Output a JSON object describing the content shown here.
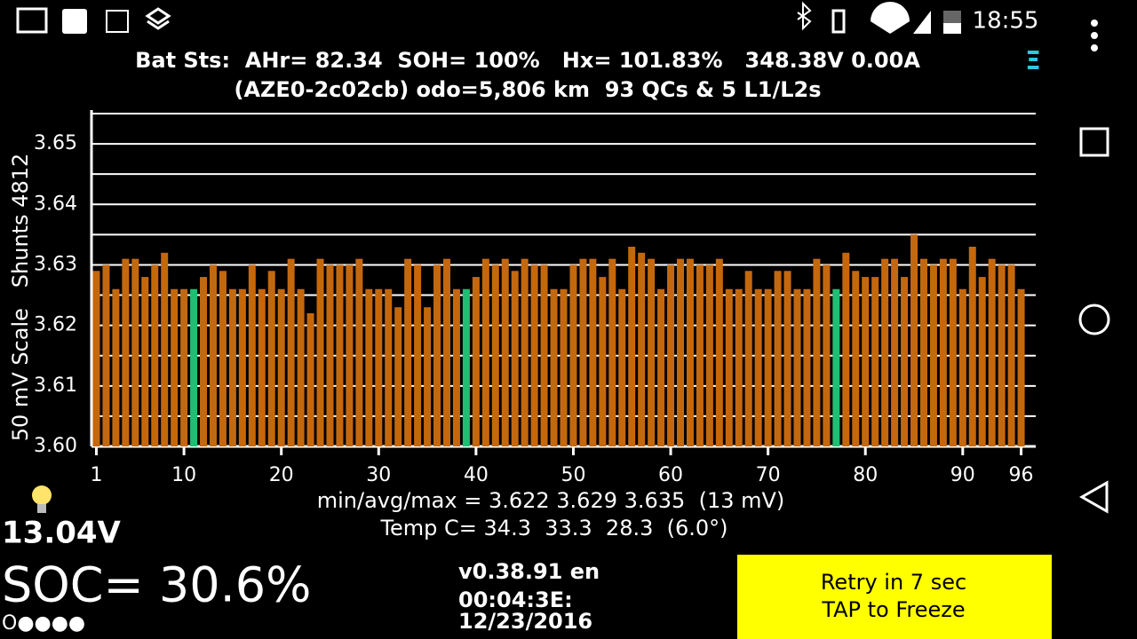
{
  "status_bar": {
    "time": "18:55"
  },
  "header": {
    "line1": "Bat Sts:  AHr= 82.34  SOH= 100%   Hx= 101.83%   348.38V 0.00A",
    "line2": "(AZE0-2c02cb) odo=5,806 km  93 QCs & 5 L1/L2s",
    "menu_icon": "Ξ"
  },
  "chart_data": {
    "type": "bar",
    "ylabel": "50 mV Scale   Shunts 4812",
    "x": [
      1,
      2,
      3,
      4,
      5,
      6,
      7,
      8,
      9,
      10,
      11,
      12,
      13,
      14,
      15,
      16,
      17,
      18,
      19,
      20,
      21,
      22,
      23,
      24,
      25,
      26,
      27,
      28,
      29,
      30,
      31,
      32,
      33,
      34,
      35,
      36,
      37,
      38,
      39,
      40,
      41,
      42,
      43,
      44,
      45,
      46,
      47,
      48,
      49,
      50,
      51,
      52,
      53,
      54,
      55,
      56,
      57,
      58,
      59,
      60,
      61,
      62,
      63,
      64,
      65,
      66,
      67,
      68,
      69,
      70,
      71,
      72,
      73,
      74,
      75,
      76,
      77,
      78,
      79,
      80,
      81,
      82,
      83,
      84,
      85,
      86,
      87,
      88,
      89,
      90,
      91,
      92,
      93,
      94,
      95,
      96
    ],
    "values": [
      3.629,
      3.63,
      3.626,
      3.631,
      3.631,
      3.628,
      3.63,
      3.632,
      3.626,
      3.626,
      3.626,
      3.628,
      3.63,
      3.629,
      3.626,
      3.626,
      3.63,
      3.626,
      3.629,
      3.626,
      3.631,
      3.626,
      3.622,
      3.631,
      3.63,
      3.63,
      3.63,
      3.631,
      3.626,
      3.626,
      3.626,
      3.623,
      3.631,
      3.63,
      3.623,
      3.63,
      3.631,
      3.626,
      3.626,
      3.628,
      3.631,
      3.63,
      3.631,
      3.629,
      3.631,
      3.63,
      3.63,
      3.626,
      3.626,
      3.63,
      3.631,
      3.631,
      3.628,
      3.631,
      3.626,
      3.633,
      3.632,
      3.631,
      3.626,
      3.63,
      3.631,
      3.631,
      3.63,
      3.63,
      3.631,
      3.626,
      3.626,
      3.629,
      3.626,
      3.626,
      3.629,
      3.629,
      3.626,
      3.626,
      3.631,
      3.63,
      3.626,
      3.632,
      3.629,
      3.628,
      3.628,
      3.631,
      3.631,
      3.628,
      3.635,
      3.631,
      3.63,
      3.631,
      3.631,
      3.626,
      3.633,
      3.628,
      3.631,
      3.63,
      3.63,
      3.626
    ],
    "color": "#c4680e",
    "highlight": {
      "color": "#1fbf73",
      "x": [
        11,
        39,
        77
      ]
    },
    "xlim": [
      0.5,
      97.5
    ],
    "xticks": [
      1,
      10,
      20,
      30,
      40,
      50,
      60,
      70,
      80,
      90,
      96
    ],
    "ylim": [
      3.6,
      3.655
    ],
    "yticks": [
      {
        "value": 3.6,
        "label": "3.60"
      },
      3.61,
      3.62,
      3.63,
      3.64,
      3.65
    ],
    "yminorticks": [
      3.605,
      3.615,
      3.625,
      3.635,
      3.645,
      3.655
    ],
    "grid": true
  },
  "stats": {
    "min_avg_max": "min/avg/max = 3.622 3.629 3.635  (13 mV)",
    "temp": "Temp C= 34.3  33.3  28.3  (6.0°)"
  },
  "aux_voltage": "13.04V",
  "soc": "SOC= 30.6%",
  "dots": "O●●●●",
  "version": "v0.38.91 en",
  "device_id": "00:04:3E:",
  "date": "12/23/2016",
  "button": {
    "line1": "Retry in 7 sec",
    "line2": "TAP to Freeze"
  }
}
